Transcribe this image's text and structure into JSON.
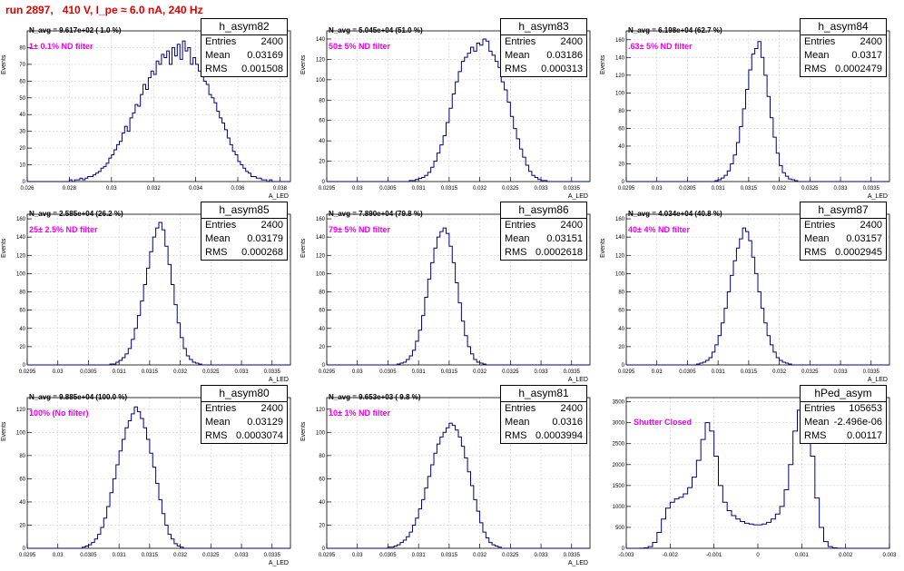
{
  "header": {
    "run_title": "run 2897,   410 V, I_pe ≈ 6.0 nA, 240 Hz"
  },
  "colors": {
    "title": "#e00000",
    "histogram": "#000080",
    "annotation": "#ee00ee",
    "grid": "#cccccc"
  },
  "stats_labels": {
    "entries": "Entries",
    "mean": "Mean",
    "rms": "RMS"
  },
  "chart_data": [
    {
      "type": "histogram",
      "name": "h_asym82",
      "n_avg_text": "N_avg = 9.617e+02 ( 1.0 %)",
      "annotation": "1± 0.1% ND filter",
      "entries": "2400",
      "mean": "0.03169",
      "rms": "0.001508",
      "ylabel": "Events",
      "xlabel": "A_LED",
      "xlim": [
        0.026,
        0.0385
      ],
      "ylim": [
        0,
        90
      ],
      "xticks": [
        0.026,
        0.028,
        0.03,
        0.032,
        0.034,
        0.036,
        0.038
      ],
      "xtick_labels": [
        "0.026",
        "0.028",
        "0.03",
        "0.032",
        "0.034",
        "0.036",
        "0.038"
      ],
      "yticks": [
        0,
        10,
        20,
        30,
        40,
        50,
        60,
        70,
        80
      ],
      "ytick_labels": [
        "0",
        "10",
        "20",
        "30",
        "40",
        "50",
        "60",
        "70",
        "80"
      ],
      "bins_x0": 0.026,
      "bins_dx": 0.000125,
      "counts": [
        0,
        0,
        0,
        0,
        0,
        0,
        0,
        0,
        0,
        0,
        0,
        0,
        0,
        0,
        0,
        0,
        1,
        0,
        1,
        1,
        2,
        1,
        2,
        3,
        3,
        4,
        5,
        6,
        8,
        9,
        11,
        14,
        16,
        19,
        22,
        24,
        29,
        33,
        30,
        38,
        41,
        46,
        45,
        52,
        58,
        55,
        62,
        66,
        64,
        72,
        70,
        76,
        74,
        78,
        70,
        80,
        75,
        82,
        73,
        84,
        78,
        80,
        70,
        74,
        70,
        66,
        64,
        60,
        58,
        52,
        50,
        47,
        42,
        38,
        35,
        31,
        26,
        22,
        18,
        16,
        12,
        10,
        8,
        6,
        5,
        3,
        3,
        2,
        2,
        1,
        1,
        0,
        1,
        0,
        0,
        0,
        0,
        0,
        0,
        0
      ]
    },
    {
      "type": "histogram",
      "name": "h_asym83",
      "n_avg_text": "N_avg = 5.045e+04 (51.0 %)",
      "annotation": "50± 5% ND filter",
      "entries": "2400",
      "mean": "0.03186",
      "rms": "0.000313",
      "ylabel": "Events",
      "xlabel": "A_LED",
      "xlim": [
        0.0295,
        0.0338
      ],
      "ylim": [
        0,
        148
      ],
      "xticks": [
        0.0295,
        0.03,
        0.0305,
        0.031,
        0.0315,
        0.032,
        0.0325,
        0.033,
        0.0335
      ],
      "xtick_labels": [
        "0.0295",
        "0.03",
        "0.0305",
        "0.031",
        "0.0315",
        "0.032",
        "0.0325",
        "0.033",
        "0.0335"
      ],
      "yticks": [
        0,
        20,
        40,
        60,
        80,
        100,
        120,
        140
      ],
      "ytick_labels": [
        "0",
        "20",
        "40",
        "60",
        "80",
        "100",
        "120",
        "140"
      ],
      "bins_x0": 0.0295,
      "bins_dx": 5e-05,
      "counts": [
        0,
        0,
        0,
        0,
        0,
        0,
        0,
        0,
        0,
        0,
        0,
        0,
        0,
        0,
        0,
        0,
        0,
        0,
        0,
        0,
        0,
        0,
        0,
        0,
        0,
        0,
        0,
        1,
        1,
        2,
        3,
        4,
        6,
        9,
        14,
        20,
        28,
        36,
        45,
        58,
        72,
        86,
        98,
        108,
        118,
        122,
        126,
        132,
        128,
        136,
        134,
        140,
        138,
        128,
        124,
        118,
        112,
        98,
        90,
        78,
        64,
        52,
        42,
        32,
        24,
        16,
        10,
        6,
        4,
        2,
        1,
        1,
        0,
        0,
        0,
        0,
        0,
        0,
        0,
        0,
        0,
        0,
        0,
        0,
        0,
        0
      ]
    },
    {
      "type": "histogram",
      "name": "h_asym84",
      "n_avg_text": "N_avg = 6.198e+04 (62.7 %)",
      "annotation": ".63± 5% ND filter",
      "entries": "2400",
      "mean": "0.0317",
      "rms": "0.0002479",
      "ylabel": "Events",
      "xlabel": "A_LED",
      "xlim": [
        0.0295,
        0.0338
      ],
      "ylim": [
        0,
        170
      ],
      "xticks": [
        0.0295,
        0.03,
        0.0305,
        0.031,
        0.0315,
        0.032,
        0.0325,
        0.033,
        0.0335
      ],
      "xtick_labels": [
        "0.0295",
        "0.03",
        "0.0305",
        "0.031",
        "0.0315",
        "0.032",
        "0.0325",
        "0.033",
        "0.0335"
      ],
      "yticks": [
        0,
        20,
        40,
        60,
        80,
        100,
        120,
        140,
        160
      ],
      "ytick_labels": [
        "0",
        "20",
        "40",
        "60",
        "80",
        "100",
        "120",
        "140",
        "160"
      ],
      "bins_x0": 0.0295,
      "bins_dx": 5e-05,
      "counts": [
        0,
        0,
        0,
        0,
        0,
        0,
        0,
        0,
        0,
        0,
        0,
        0,
        0,
        0,
        0,
        0,
        0,
        0,
        0,
        0,
        0,
        0,
        0,
        0,
        0,
        0,
        0,
        0,
        0,
        1,
        2,
        4,
        7,
        12,
        20,
        30,
        44,
        62,
        82,
        104,
        126,
        144,
        150,
        158,
        140,
        120,
        96,
        72,
        50,
        32,
        18,
        10,
        6,
        3,
        2,
        1,
        0,
        0,
        0,
        0,
        0,
        0,
        0,
        0,
        0,
        0,
        0,
        0,
        0,
        0,
        0,
        0,
        0,
        0,
        0,
        0,
        0,
        0,
        0,
        0,
        0,
        0,
        0,
        0,
        0,
        0
      ]
    },
    {
      "type": "histogram",
      "name": "h_asym85",
      "n_avg_text": "N_avg = 2.585e+04 (26.2 %)",
      "annotation": "25± 2.5% ND filter",
      "entries": "2400",
      "mean": "0.03179",
      "rms": "0.000268",
      "ylabel": "Events",
      "xlabel": "A_LED",
      "xlim": [
        0.0295,
        0.0338
      ],
      "ylim": [
        0,
        165
      ],
      "xticks": [
        0.0295,
        0.03,
        0.0305,
        0.031,
        0.0315,
        0.032,
        0.0325,
        0.033,
        0.0335
      ],
      "xtick_labels": [
        "0.0295",
        "0.03",
        "0.0305",
        "0.031",
        "0.0315",
        "0.032",
        "0.0325",
        "0.033",
        "0.0335"
      ],
      "yticks": [
        0,
        20,
        40,
        60,
        80,
        100,
        120,
        140,
        160
      ],
      "ytick_labels": [
        "0",
        "20",
        "40",
        "60",
        "80",
        "100",
        "120",
        "140",
        "160"
      ],
      "bins_x0": 0.0295,
      "bins_dx": 5e-05,
      "counts": [
        0,
        0,
        0,
        0,
        0,
        0,
        0,
        0,
        0,
        0,
        0,
        0,
        0,
        0,
        0,
        0,
        0,
        0,
        0,
        0,
        0,
        0,
        0,
        0,
        0,
        0,
        0,
        1,
        1,
        3,
        5,
        8,
        12,
        18,
        28,
        40,
        54,
        70,
        88,
        106,
        124,
        140,
        150,
        156,
        148,
        130,
        110,
        88,
        66,
        46,
        30,
        18,
        10,
        6,
        3,
        2,
        1,
        0,
        0,
        0,
        0,
        0,
        0,
        0,
        0,
        0,
        0,
        0,
        0,
        0,
        0,
        0,
        0,
        0,
        0,
        0,
        0,
        0,
        0,
        0,
        0,
        0,
        0,
        0,
        0,
        0
      ]
    },
    {
      "type": "histogram",
      "name": "h_asym86",
      "n_avg_text": "N_avg = 7.890e+04 (79.8 %)",
      "annotation": "79± 5% ND filter",
      "entries": "2400",
      "mean": "0.03151",
      "rms": "0.0002618",
      "ylabel": "Events",
      "xlabel": "A_LED",
      "xlim": [
        0.0295,
        0.0338
      ],
      "ylim": [
        0,
        165
      ],
      "xticks": [
        0.0295,
        0.03,
        0.0305,
        0.031,
        0.0315,
        0.032,
        0.0325,
        0.033,
        0.0335
      ],
      "xtick_labels": [
        "0.0295",
        "0.03",
        "0.0305",
        "0.031",
        "0.0315",
        "0.032",
        "0.0325",
        "0.033",
        "0.0335"
      ],
      "yticks": [
        0,
        20,
        40,
        60,
        80,
        100,
        120,
        140,
        160
      ],
      "ytick_labels": [
        "0",
        "20",
        "40",
        "60",
        "80",
        "100",
        "120",
        "140",
        "160"
      ],
      "bins_x0": 0.0295,
      "bins_dx": 5e-05,
      "counts": [
        0,
        0,
        0,
        0,
        0,
        0,
        0,
        0,
        0,
        0,
        0,
        0,
        0,
        0,
        0,
        0,
        0,
        0,
        0,
        0,
        0,
        0,
        0,
        1,
        2,
        3,
        6,
        10,
        16,
        26,
        38,
        54,
        74,
        94,
        112,
        128,
        140,
        146,
        150,
        144,
        130,
        112,
        90,
        68,
        48,
        32,
        20,
        12,
        6,
        3,
        2,
        1,
        0,
        0,
        0,
        0,
        0,
        0,
        0,
        0,
        0,
        0,
        0,
        0,
        0,
        0,
        0,
        0,
        0,
        0,
        0,
        0,
        0,
        0,
        0,
        0,
        0,
        0,
        0,
        0,
        0,
        0,
        0,
        0,
        0,
        0
      ]
    },
    {
      "type": "histogram",
      "name": "h_asym87",
      "n_avg_text": "N_avg = 4.034e+04 (40.8 %)",
      "annotation": "40± 4% ND filter",
      "entries": "2400",
      "mean": "0.03157",
      "rms": "0.0002945",
      "ylabel": "Events",
      "xlabel": "A_LED",
      "xlim": [
        0.0295,
        0.0338
      ],
      "ylim": [
        0,
        165
      ],
      "xticks": [
        0.0295,
        0.03,
        0.0305,
        0.031,
        0.0315,
        0.032,
        0.0325,
        0.033,
        0.0335
      ],
      "xtick_labels": [
        "0.0295",
        "0.03",
        "0.0305",
        "0.031",
        "0.0315",
        "0.032",
        "0.0325",
        "0.033",
        "0.0335"
      ],
      "yticks": [
        0,
        20,
        40,
        60,
        80,
        100,
        120,
        140,
        160
      ],
      "ytick_labels": [
        "0",
        "20",
        "40",
        "60",
        "80",
        "100",
        "120",
        "140",
        "160"
      ],
      "bins_x0": 0.0295,
      "bins_dx": 5e-05,
      "counts": [
        0,
        0,
        0,
        0,
        0,
        0,
        0,
        0,
        0,
        0,
        0,
        0,
        0,
        0,
        0,
        0,
        0,
        0,
        0,
        0,
        0,
        0,
        0,
        1,
        2,
        3,
        5,
        8,
        14,
        22,
        32,
        46,
        62,
        80,
        98,
        114,
        128,
        138,
        150,
        146,
        136,
        118,
        100,
        80,
        62,
        46,
        32,
        22,
        14,
        8,
        5,
        3,
        2,
        1,
        0,
        0,
        0,
        0,
        0,
        0,
        0,
        0,
        0,
        0,
        0,
        0,
        0,
        0,
        0,
        0,
        0,
        0,
        0,
        0,
        0,
        0,
        0,
        0,
        0,
        0,
        0,
        0,
        0,
        0,
        0,
        0
      ]
    },
    {
      "type": "histogram",
      "name": "h_asym80",
      "n_avg_text": "N_avg = 9.885e+04 (100.0 %)",
      "annotation": "100% (No filter)",
      "entries": "2400",
      "mean": "0.03129",
      "rms": "0.0003074",
      "ylabel": "Events",
      "xlabel": "A_LED",
      "xlim": [
        0.0295,
        0.0338
      ],
      "ylim": [
        0,
        130
      ],
      "xticks": [
        0.0295,
        0.03,
        0.0305,
        0.031,
        0.0315,
        0.032,
        0.0325,
        0.033,
        0.0335
      ],
      "xtick_labels": [
        "0.0295",
        "0.03",
        "0.0305",
        "0.031",
        "0.0315",
        "0.032",
        "0.0325",
        "0.033",
        "0.0335"
      ],
      "yticks": [
        0,
        20,
        40,
        60,
        80,
        100,
        120
      ],
      "ytick_labels": [
        "0",
        "20",
        "40",
        "60",
        "80",
        "100",
        "120"
      ],
      "bins_x0": 0.0295,
      "bins_dx": 5e-05,
      "counts": [
        0,
        0,
        0,
        0,
        0,
        0,
        0,
        0,
        0,
        0,
        0,
        0,
        0,
        0,
        0,
        0,
        0,
        0,
        1,
        2,
        3,
        5,
        8,
        12,
        18,
        26,
        36,
        48,
        60,
        72,
        84,
        94,
        104,
        110,
        116,
        122,
        118,
        112,
        104,
        94,
        82,
        70,
        56,
        42,
        30,
        20,
        12,
        8,
        4,
        2,
        1,
        0,
        0,
        0,
        0,
        0,
        0,
        0,
        0,
        0,
        0,
        0,
        0,
        0,
        0,
        0,
        0,
        0,
        0,
        0,
        0,
        0,
        0,
        0,
        0,
        0,
        0,
        0,
        0,
        0,
        0,
        0,
        0,
        0,
        0,
        0
      ]
    },
    {
      "type": "histogram",
      "name": "h_asym81",
      "n_avg_text": "N_avg = 9.653e+03 ( 9.8 %)",
      "annotation": "10± 1% ND filter",
      "entries": "2400",
      "mean": "0.0316",
      "rms": "0.0003994",
      "ylabel": "Events",
      "xlabel": "A_LED",
      "xlim": [
        0.0295,
        0.0338
      ],
      "ylim": [
        0,
        130
      ],
      "xticks": [
        0.0295,
        0.03,
        0.0305,
        0.031,
        0.0315,
        0.032,
        0.0325,
        0.033,
        0.0335
      ],
      "xtick_labels": [
        "0.0295",
        "0.03",
        "0.0305",
        "0.031",
        "0.0315",
        "0.032",
        "0.0325",
        "0.033",
        "0.0335"
      ],
      "yticks": [
        0,
        20,
        40,
        60,
        80,
        100,
        120
      ],
      "ytick_labels": [
        "0",
        "20",
        "40",
        "60",
        "80",
        "100",
        "120"
      ],
      "bins_x0": 0.0295,
      "bins_dx": 5e-05,
      "counts": [
        0,
        0,
        0,
        0,
        0,
        0,
        0,
        0,
        0,
        0,
        0,
        0,
        0,
        0,
        0,
        0,
        0,
        0,
        0,
        0,
        1,
        1,
        2,
        3,
        5,
        7,
        10,
        14,
        20,
        26,
        34,
        42,
        52,
        62,
        72,
        82,
        90,
        96,
        100,
        104,
        108,
        106,
        102,
        96,
        88,
        78,
        66,
        54,
        42,
        32,
        22,
        14,
        9,
        5,
        3,
        2,
        1,
        0,
        0,
        0,
        0,
        0,
        0,
        0,
        0,
        0,
        0,
        0,
        0,
        0,
        0,
        0,
        0,
        0,
        0,
        0,
        0,
        0,
        0,
        0,
        0,
        0,
        0,
        0,
        0,
        0
      ]
    },
    {
      "type": "histogram",
      "name": "hPed_asym",
      "n_avg_text": "",
      "annotation": "Shutter Closed",
      "entries": "105653",
      "mean": "-2.496e-06",
      "rms": "0.00117",
      "ylabel": "",
      "xlabel": "",
      "xlim": [
        -0.003,
        0.003
      ],
      "ylim": [
        0,
        3600
      ],
      "xticks": [
        -0.003,
        -0.002,
        -0.001,
        0,
        0.001,
        0.002,
        0.003
      ],
      "xtick_labels": [
        "-0.003",
        "-0.002",
        "-0.001",
        "0",
        "0.001",
        "0.002",
        "0.003"
      ],
      "yticks": [
        0,
        500,
        1000,
        1500,
        2000,
        2500,
        3000,
        3500
      ],
      "ytick_labels": [
        "0",
        "500",
        "1000",
        "1500",
        "2000",
        "2500",
        "3000",
        "3500"
      ],
      "bins_x0": -0.003,
      "bins_dx": 0.0001,
      "counts": [
        0,
        0,
        0,
        2,
        10,
        40,
        140,
        380,
        700,
        960,
        1100,
        1180,
        1220,
        1300,
        1450,
        1700,
        2100,
        2600,
        3000,
        2800,
        2200,
        1500,
        1100,
        900,
        780,
        700,
        640,
        600,
        580,
        560,
        560,
        580,
        620,
        700,
        820,
        1000,
        1400,
        2000,
        2800,
        3300,
        3500,
        3100,
        2200,
        1200,
        500,
        160,
        40,
        10,
        2,
        0,
        0,
        0,
        0,
        0,
        0,
        0,
        0,
        0,
        0,
        0
      ]
    }
  ]
}
